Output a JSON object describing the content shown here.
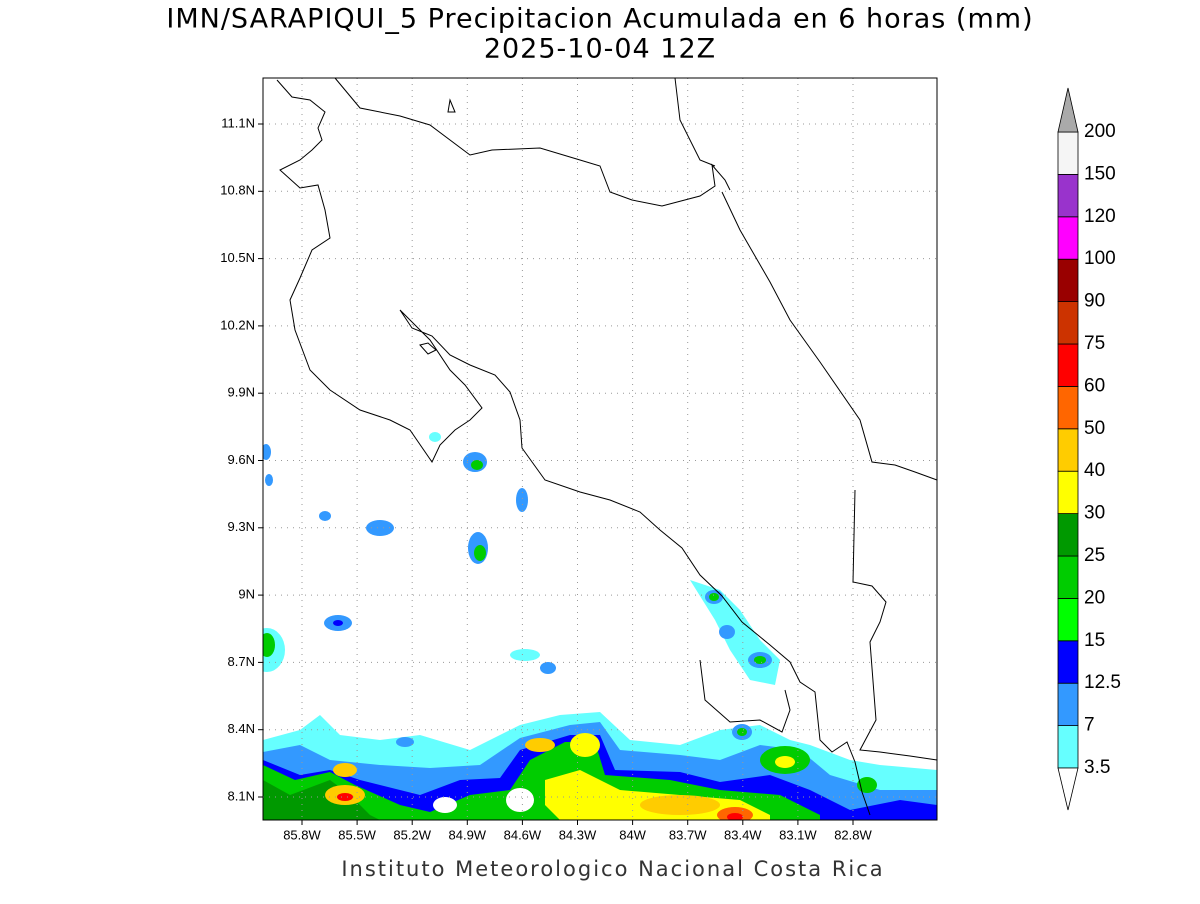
{
  "title": {
    "line1": "IMN/SARAPIQUI_5 Precipitacion Acumulada en 6 horas (mm)",
    "line2": "2025-10-04 12Z"
  },
  "map": {
    "lat_labels": [
      "11.1N",
      "10.8N",
      "10.5N",
      "10.2N",
      "9.9N",
      "9.6N",
      "9.3N",
      "9N",
      "8.7N",
      "8.4N",
      "8.1N"
    ],
    "lon_labels": [
      "85.8W",
      "85.5W",
      "85.2W",
      "84.9W",
      "84.6W",
      "84.3W",
      "84W",
      "83.7W",
      "83.4W",
      "83.1W",
      "82.8W"
    ],
    "grid": true
  },
  "colorbar": {
    "levels": [
      "3.5",
      "7",
      "12.5",
      "15",
      "20",
      "25",
      "30",
      "40",
      "50",
      "60",
      "75",
      "90",
      "100",
      "120",
      "150",
      "200"
    ],
    "colors": [
      "#66ffff",
      "#3399ff",
      "#0000ff",
      "#00ff00",
      "#00cc00",
      "#009900",
      "#ffff00",
      "#ffcc00",
      "#ff6600",
      "#ff0000",
      "#cc3300",
      "#990000",
      "#ff00ff",
      "#9933cc",
      "#f5f5f5"
    ],
    "under_color": "#ffffff",
    "over_color": "#aaaaaa"
  },
  "footer": "Instituto Meteorologico Nacional Costa Rica"
}
